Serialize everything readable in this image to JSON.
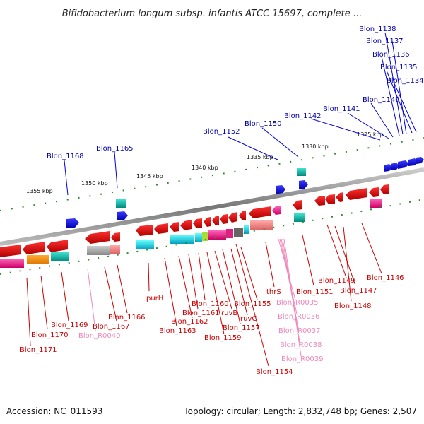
{
  "title": "Bifidobacterium longum subsp. infantis ATCC 15697, complete ...",
  "scale_labels": [
    "1325 kbp",
    "1330 kbp",
    "1335 kbp",
    "1340 kbp",
    "1345 kbp",
    "1350 kbp",
    "1355 kbp"
  ],
  "upper_labels": [
    "Blon_1138",
    "Blon_1137",
    "Blon_1136",
    "Blon_1135",
    "Blon_1134",
    "Blon_1140",
    "Blon_1141",
    "Blon_1142",
    "Blon_1150",
    "Blon_1152",
    "Blon_1165",
    "Blon_1168"
  ],
  "lower_labels": [
    "Blon_1146",
    "Blon_1149",
    "Blon_1147",
    "Blon_1148",
    "Blon_1151",
    "thrS",
    "Blon_R0035",
    "Blon_R0036",
    "Blon_R0037",
    "Blon_R0038",
    "Blon_R0039",
    "Blon_1154",
    "Blon_1155",
    "ruvC",
    "Blon_1157",
    "ruvB",
    "Blon_1159",
    "Blon_1160",
    "Blon_1161",
    "Blon_1162",
    "Blon_1163",
    "purH",
    "Blon_1166",
    "Blon_1167",
    "Blon_R0040",
    "Blon_1169",
    "Blon_1170",
    "Blon_1171"
  ],
  "footer": {
    "accession": "Accession: NC_011593",
    "stats": "Topology: circular; Length: 2,832,748 bp; Genes: 2,507"
  },
  "colors": {
    "forward_gene": "#1a1aff",
    "reverse_gene": "#ee0000",
    "upper_label": "#0000aa",
    "lower_label": "#cc0000",
    "rna_label": "#ee88bb",
    "backbone": "#888888",
    "scale_ticks": "#2a8a2a"
  }
}
